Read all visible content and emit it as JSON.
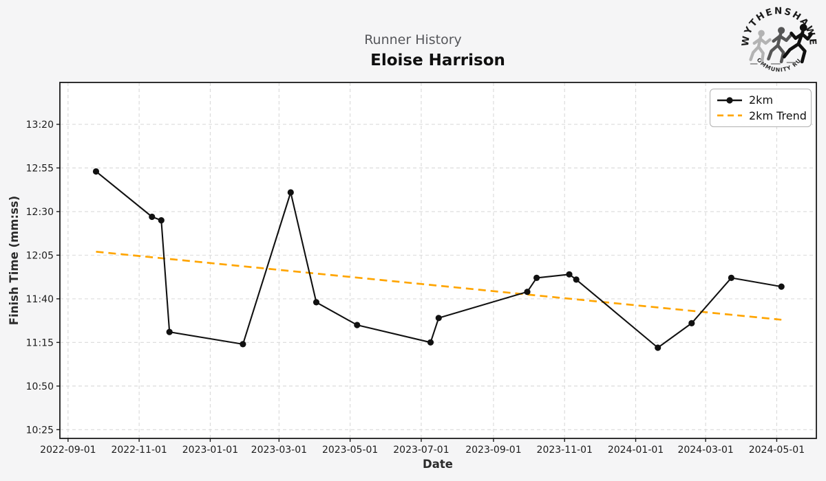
{
  "header": {
    "suptitle": "Runner History",
    "title": "Eloise Harrison"
  },
  "logo": {
    "top_text": "WYTHENSHAWE",
    "bottom_text": "COMMUNITY RUN",
    "runner_colors": [
      "#b3b3b3",
      "#565656",
      "#101010"
    ]
  },
  "legend": {
    "items": [
      {
        "label": "2km",
        "style": "solid-marker",
        "color": "#111111"
      },
      {
        "label": "2km Trend",
        "style": "dashed",
        "color": "#ffa500"
      }
    ]
  },
  "chart_data": {
    "type": "line",
    "title": "Runner History",
    "subtitle": "Eloise Harrison",
    "xlabel": "Date",
    "ylabel": "Finish Time (mm:ss)",
    "grid": true,
    "legend_position": "upper right",
    "xlim": [
      "2022-08-25",
      "2024-06-04"
    ],
    "ylim_mmss": [
      "10:20",
      "13:44"
    ],
    "x_ticks": [
      "2022-09-01",
      "2022-11-01",
      "2023-01-01",
      "2023-03-01",
      "2023-05-01",
      "2023-07-01",
      "2023-09-01",
      "2023-11-01",
      "2024-01-01",
      "2024-03-01",
      "2024-05-01"
    ],
    "y_ticks": [
      "10:25",
      "10:50",
      "11:15",
      "11:40",
      "12:05",
      "12:30",
      "12:55",
      "13:20"
    ],
    "series": [
      {
        "name": "2km",
        "color": "#111111",
        "style": "solid",
        "markers": true,
        "points": [
          {
            "date": "2022-09-25",
            "time": "12:53"
          },
          {
            "date": "2022-11-12",
            "time": "12:27"
          },
          {
            "date": "2022-11-20",
            "time": "12:25"
          },
          {
            "date": "2022-11-27",
            "time": "11:21"
          },
          {
            "date": "2023-01-29",
            "time": "11:14"
          },
          {
            "date": "2023-03-11",
            "time": "12:41"
          },
          {
            "date": "2023-04-02",
            "time": "11:38"
          },
          {
            "date": "2023-05-07",
            "time": "11:25"
          },
          {
            "date": "2023-07-09",
            "time": "11:15"
          },
          {
            "date": "2023-07-16",
            "time": "11:29"
          },
          {
            "date": "2023-09-30",
            "time": "11:44"
          },
          {
            "date": "2023-10-08",
            "time": "11:52"
          },
          {
            "date": "2023-11-05",
            "time": "11:54"
          },
          {
            "date": "2023-11-11",
            "time": "11:51"
          },
          {
            "date": "2024-01-20",
            "time": "11:12"
          },
          {
            "date": "2024-02-18",
            "time": "11:26"
          },
          {
            "date": "2024-03-23",
            "time": "11:52"
          },
          {
            "date": "2024-05-05",
            "time": "11:47"
          }
        ]
      },
      {
        "name": "2km Trend",
        "color": "#ffa500",
        "style": "dashed",
        "markers": false,
        "points": [
          {
            "date": "2022-09-25",
            "time": "12:07"
          },
          {
            "date": "2024-05-05",
            "time": "11:28"
          }
        ]
      }
    ],
    "colors": {
      "figure_background": "#f5f5f6",
      "plot_background": "#ffffff",
      "gridline": "#d9d9d9",
      "spine": "#1a1a1a",
      "series": "#111111",
      "trend": "#ffa500"
    }
  }
}
